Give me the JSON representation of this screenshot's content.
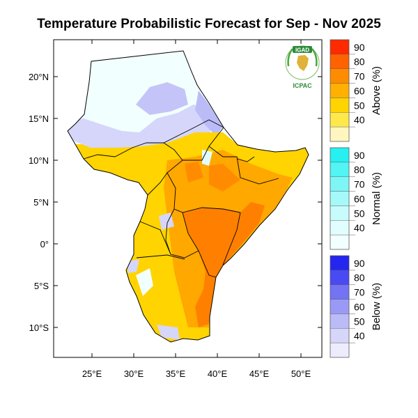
{
  "title": "Temperature Probabilistic Forecast for Sep - Nov 2025",
  "logo": {
    "top_text": "IGAD",
    "bottom_text": "ICPAC"
  },
  "map": {
    "lat_ticks": [
      "20°N",
      "15°N",
      "10°N",
      "5°N",
      "0°",
      "5°S",
      "10°S"
    ],
    "lon_ticks": [
      "25°E",
      "30°E",
      "35°E",
      "40°E",
      "45°E",
      "50°E"
    ]
  },
  "legends": [
    {
      "title": "Above (%)",
      "labels": [
        "90",
        "80",
        "70",
        "60",
        "50",
        "40"
      ],
      "colors": [
        "#ff2a00",
        "#ff6200",
        "#ff8c00",
        "#ffb000",
        "#ffd400",
        "#ffe84a",
        "#fff7bf"
      ]
    },
    {
      "title": "Normal (%)",
      "labels": [
        "90",
        "80",
        "70",
        "60",
        "50",
        "40"
      ],
      "colors": [
        "#26f0f0",
        "#52f4f4",
        "#7ef6f6",
        "#a6f9f9",
        "#c8fbfb",
        "#e2fdfd",
        "#f2ffff"
      ]
    },
    {
      "title": "Below (%)",
      "labels": [
        "90",
        "80",
        "70",
        "60",
        "50",
        "40"
      ],
      "colors": [
        "#2525f0",
        "#4a4af2",
        "#7373f4",
        "#9a9af6",
        "#bbbbf8",
        "#d6d6fb",
        "#ececfd"
      ]
    }
  ]
}
